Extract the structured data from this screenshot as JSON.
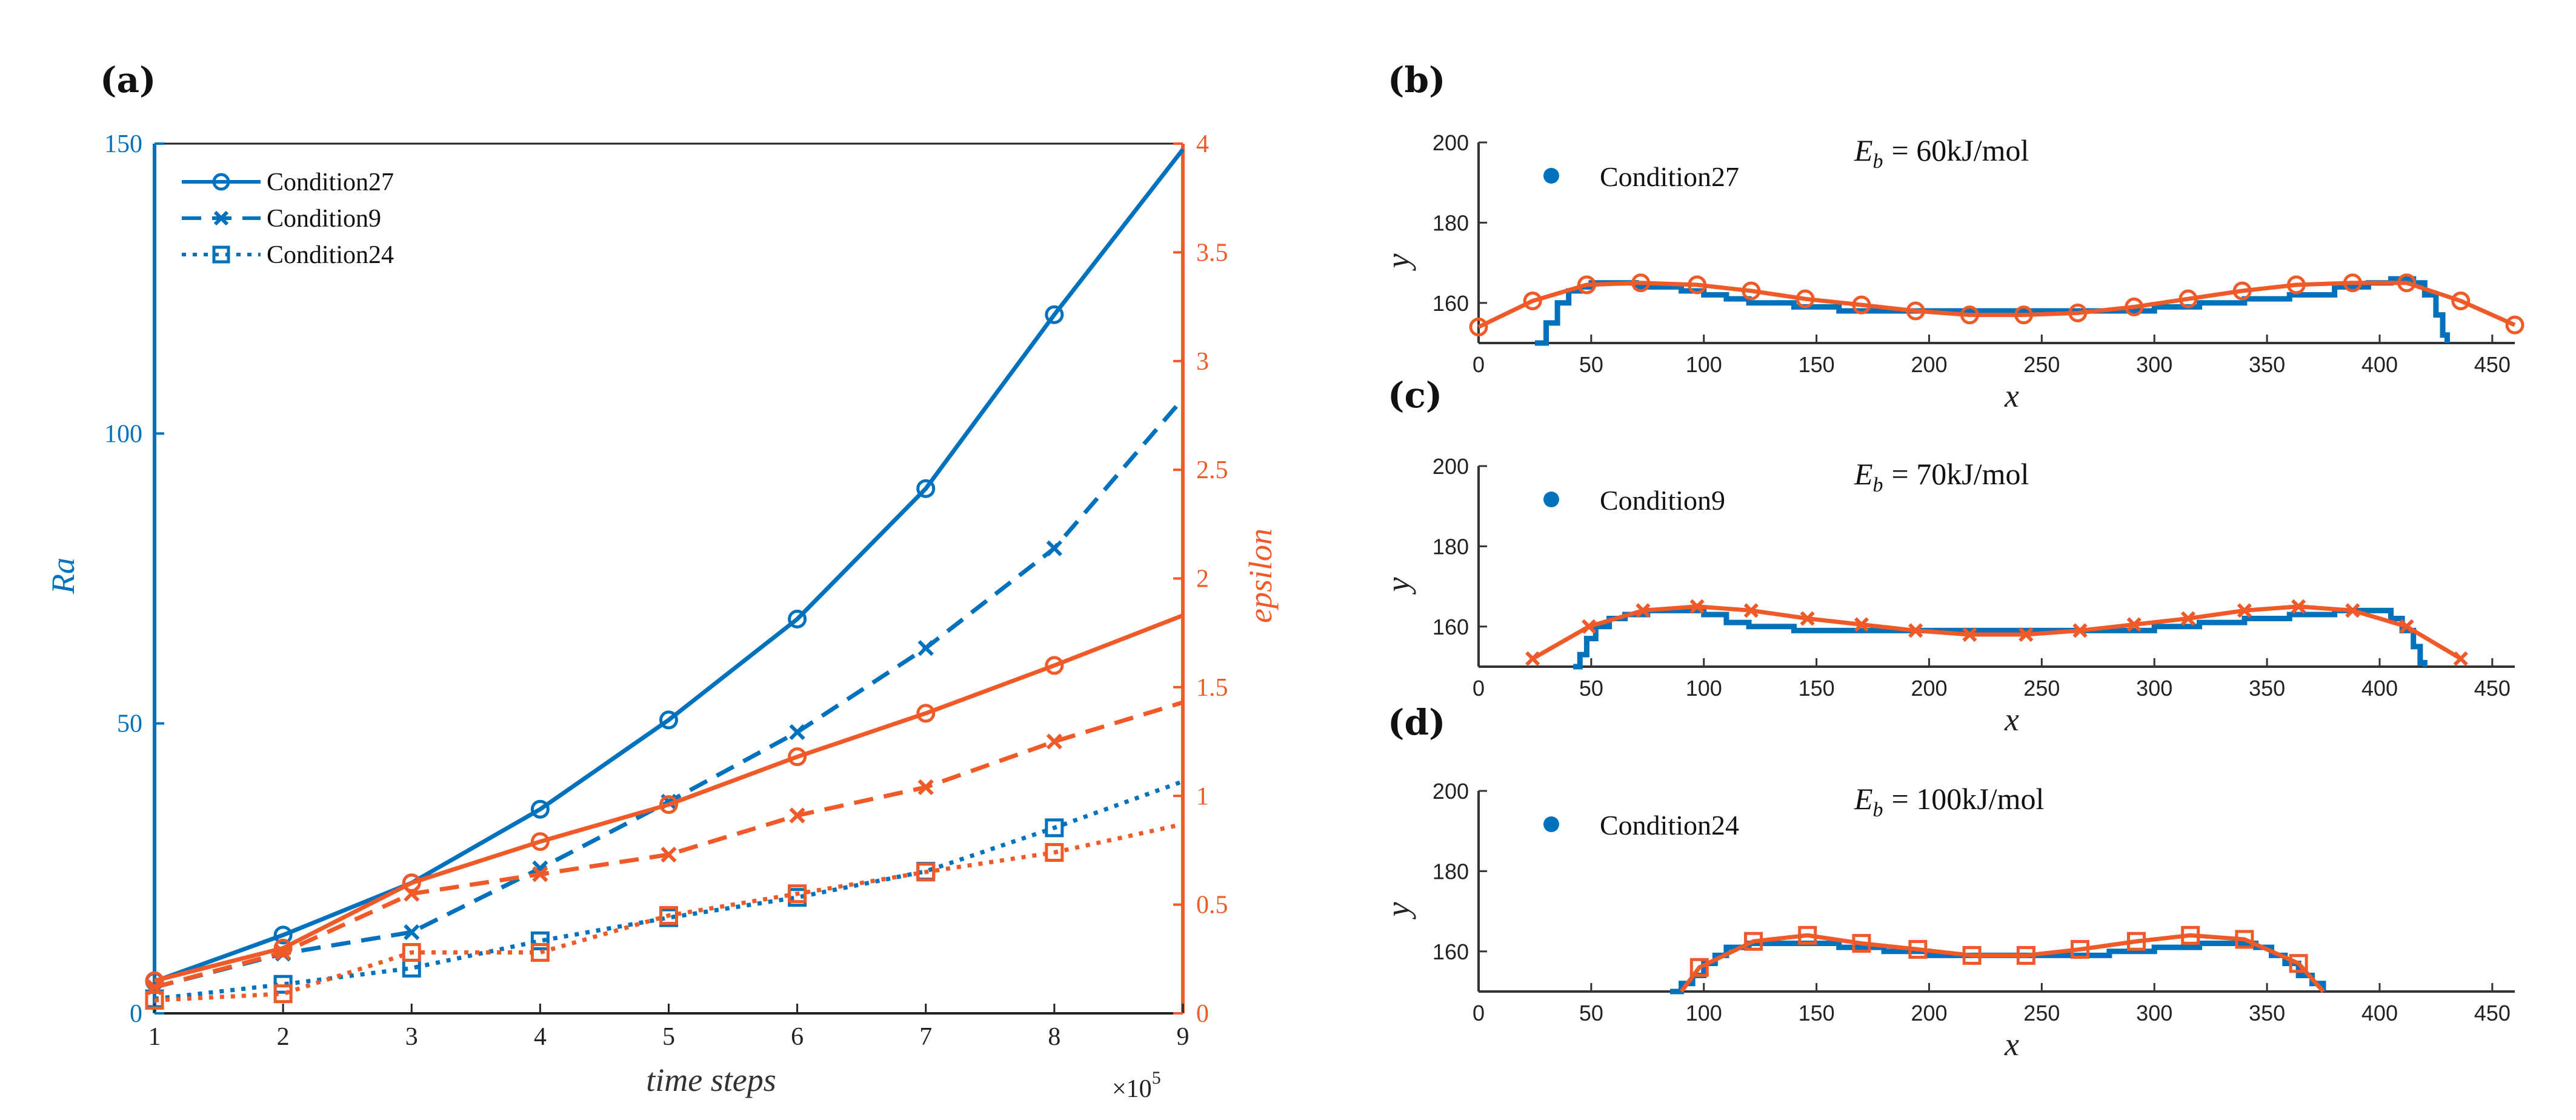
{
  "colors": {
    "blue": "#0072BD",
    "orange": "#F05A28",
    "axis_dark": "#222222"
  },
  "panel_labels": {
    "a": "(a)",
    "b": "(b)",
    "c": "(c)",
    "d": "(d)"
  },
  "chart_data": [
    {
      "id": "a",
      "type": "line",
      "xlabel": "time steps",
      "x_multiplier": "×10^5",
      "x_multiplier_base": "×10",
      "x_multiplier_exp": "5",
      "ylabel_left": "Ra",
      "ylabel_right": "epsilon",
      "xlim": [
        1,
        9
      ],
      "ylim_left": [
        0,
        150
      ],
      "ylim_right": [
        0,
        4
      ],
      "xticks": [
        1,
        2,
        3,
        4,
        5,
        6,
        7,
        8,
        9
      ],
      "yticks_left": [
        0,
        50,
        100,
        150
      ],
      "yticks_right": [
        "0",
        "0.5",
        "1",
        "1.5",
        "2",
        "2.5",
        "3",
        "3.5",
        "4"
      ],
      "legend": [
        "Condition27",
        "Condition9",
        "Condition24"
      ],
      "x": [
        1,
        2,
        3,
        4,
        5,
        6,
        7,
        8,
        9
      ],
      "series": [
        {
          "name": "Condition27",
          "axis": "left",
          "marker": "circle",
          "dash": "solid",
          "values": [
            5.5,
            13.5,
            22.5,
            35.2,
            50.6,
            68,
            90.5,
            120.5,
            149
          ]
        },
        {
          "name": "Condition9",
          "axis": "left",
          "marker": "x",
          "dash": "dashed",
          "values": [
            4.5,
            10.3,
            14,
            25,
            36.5,
            48.5,
            63,
            80.2,
            106
          ]
        },
        {
          "name": "Condition24",
          "axis": "left",
          "marker": "square",
          "dash": "dotted",
          "values": [
            2.5,
            5,
            7.8,
            12.5,
            16.5,
            20,
            24.5,
            32,
            40
          ]
        },
        {
          "name": "Condition27",
          "axis": "right",
          "marker": "circle",
          "dash": "solid",
          "values": [
            0.15,
            0.3,
            0.6,
            0.79,
            0.96,
            1.18,
            1.38,
            1.6,
            1.83
          ]
        },
        {
          "name": "Condition9",
          "axis": "right",
          "marker": "x",
          "dash": "dashed",
          "values": [
            0.12,
            0.28,
            0.55,
            0.64,
            0.73,
            0.91,
            1.04,
            1.25,
            1.43
          ]
        },
        {
          "name": "Condition24",
          "axis": "right",
          "marker": "square",
          "dash": "dotted",
          "values": [
            0.06,
            0.09,
            0.28,
            0.28,
            0.45,
            0.55,
            0.65,
            0.74,
            0.87
          ]
        }
      ]
    },
    {
      "id": "b",
      "type": "line",
      "xlabel": "x",
      "ylabel": "y",
      "xlim": [
        0,
        460
      ],
      "ylim": [
        150,
        200
      ],
      "xticks": [
        0,
        50,
        100,
        150,
        200,
        250,
        300,
        350,
        400,
        450
      ],
      "yticks": [
        160,
        180,
        200
      ],
      "legend": "Condition27",
      "energy_prefix": "E",
      "energy_sub": "b",
      "energy_value": "= 60kJ/mol",
      "marker": "circle",
      "blue_profile": {
        "x": [
          25,
          30,
          35,
          40,
          45,
          50,
          60,
          70,
          80,
          90,
          100,
          110,
          120,
          140,
          160,
          180,
          200,
          220,
          240,
          260,
          280,
          300,
          320,
          340,
          360,
          380,
          395,
          405,
          410,
          415,
          420,
          425,
          428,
          430
        ],
        "y": [
          150,
          155,
          160,
          163,
          164,
          165,
          165,
          164,
          164,
          163,
          162,
          161,
          160,
          159,
          158,
          158,
          158,
          158,
          158,
          158,
          158,
          159,
          160,
          161,
          162,
          164,
          165,
          166,
          166,
          165,
          162,
          157,
          152,
          150
        ]
      },
      "orange": {
        "x": [
          0,
          24,
          48,
          72,
          97,
          121,
          145,
          170,
          194,
          218,
          242,
          266,
          291,
          315,
          339,
          363,
          388,
          412,
          436,
          460
        ],
        "y": [
          154,
          160.5,
          164.5,
          165,
          164.5,
          163,
          161,
          159.5,
          158,
          157,
          157,
          157.5,
          159,
          161,
          163,
          164.5,
          165,
          165,
          160.5,
          154.5
        ]
      }
    },
    {
      "id": "c",
      "type": "line",
      "xlabel": "x",
      "ylabel": "y",
      "xlim": [
        0,
        460
      ],
      "ylim": [
        150,
        200
      ],
      "xticks": [
        0,
        50,
        100,
        150,
        200,
        250,
        300,
        350,
        400,
        450
      ],
      "yticks": [
        160,
        180,
        200
      ],
      "legend": "Condition9",
      "energy_prefix": "E",
      "energy_sub": "b",
      "energy_value": "= 70kJ/mol",
      "marker": "x",
      "blue_profile": {
        "x": [
          42,
          45,
          48,
          52,
          58,
          65,
          75,
          90,
          100,
          110,
          120,
          140,
          160,
          180,
          200,
          220,
          240,
          260,
          280,
          300,
          320,
          340,
          360,
          380,
          395,
          405,
          410,
          415,
          418,
          420
        ],
        "y": [
          150,
          153,
          157,
          160,
          162,
          163,
          164,
          164,
          163,
          161,
          160,
          159,
          159,
          159,
          159,
          159,
          159,
          159,
          159,
          160,
          161,
          162,
          163,
          164,
          164,
          162,
          159,
          155,
          151,
          150
        ]
      },
      "orange": {
        "x": [
          24,
          49,
          73,
          97,
          121,
          146,
          170,
          194,
          218,
          243,
          267,
          291,
          315,
          340,
          364,
          388,
          412,
          436
        ],
        "y": [
          152,
          160,
          164,
          165,
          164,
          162,
          160.5,
          159,
          158,
          158,
          159,
          160.5,
          162,
          164,
          165,
          164,
          160,
          152
        ]
      }
    },
    {
      "id": "d",
      "type": "line",
      "xlabel": "x",
      "ylabel": "y",
      "xlim": [
        0,
        460
      ],
      "ylim": [
        150,
        200
      ],
      "xticks": [
        0,
        50,
        100,
        150,
        200,
        250,
        300,
        350,
        400,
        450
      ],
      "yticks": [
        160,
        180,
        200
      ],
      "legend": "Condition24",
      "energy_prefix": "E",
      "energy_sub": "b",
      "energy_value": "= 100kJ/mol",
      "marker": "square",
      "blue_profile": {
        "x": [
          85,
          90,
          95,
          100,
          105,
          110,
          120,
          140,
          160,
          180,
          200,
          220,
          240,
          260,
          280,
          300,
          320,
          335,
          345,
          352,
          358,
          364,
          370,
          375
        ],
        "y": [
          150,
          152,
          154,
          157,
          159,
          161,
          162,
          162,
          161,
          160,
          159,
          159,
          159,
          159,
          160,
          161,
          162,
          162,
          161,
          159,
          157,
          154,
          152,
          150
        ]
      },
      "orange": {
        "x": [
          90,
          98,
          122,
          146,
          170,
          195,
          219,
          243,
          267,
          292,
          316,
          340,
          364,
          375
        ],
        "y": [
          150,
          156,
          162.5,
          164,
          162,
          160.5,
          159,
          159,
          160.5,
          162.5,
          164,
          163,
          157,
          150
        ]
      }
    }
  ]
}
